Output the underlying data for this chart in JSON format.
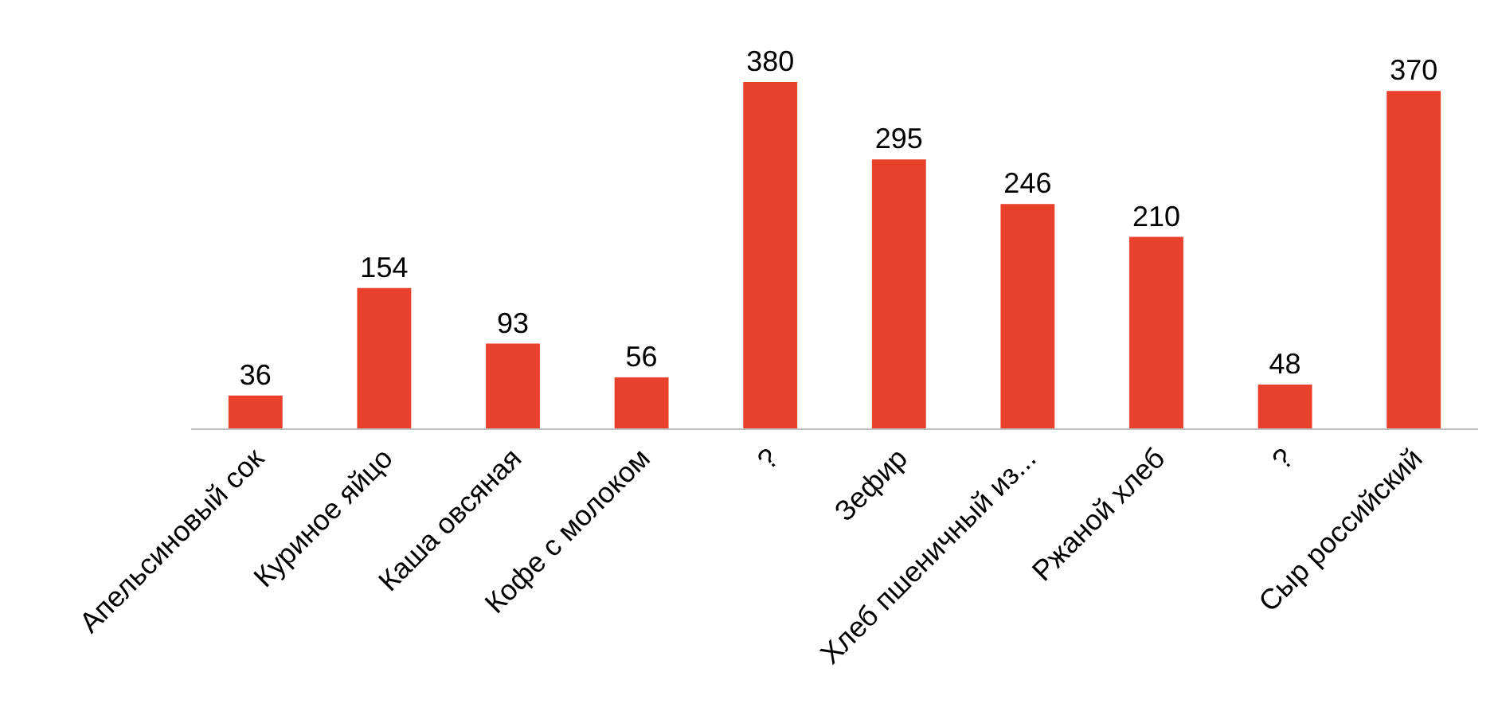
{
  "chart_data": {
    "type": "bar",
    "categories": [
      "Апельсиновый сок",
      "Куриное яйцо",
      "Каша овсяная",
      "Кофе с молоком",
      "?",
      "Зефир",
      "Хлеб пшеничный из...",
      "Ржаной хлеб",
      "?",
      "Сыр российский"
    ],
    "values": [
      36,
      154,
      93,
      56,
      380,
      295,
      246,
      210,
      48,
      370
    ],
    "color": "#e8402a",
    "data_labels": true
  }
}
